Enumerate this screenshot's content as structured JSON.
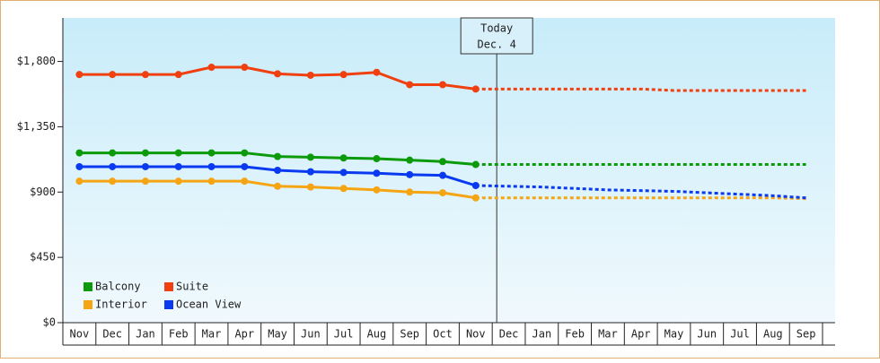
{
  "chart_data": {
    "type": "line",
    "categories": [
      "Nov",
      "Dec",
      "Jan",
      "Feb",
      "Mar",
      "Apr",
      "May",
      "Jun",
      "Jul",
      "Aug",
      "Sep",
      "Oct",
      "Nov",
      "Dec",
      "Jan",
      "Feb",
      "Mar",
      "Apr",
      "May",
      "Jun",
      "Jul",
      "Aug",
      "Sep"
    ],
    "ylim": [
      0,
      2100
    ],
    "yticks": [
      {
        "value": 0,
        "label": "$0"
      },
      {
        "value": 450,
        "label": "$450"
      },
      {
        "value": 900,
        "label": "$900"
      },
      {
        "value": 1350,
        "label": "$1,350"
      },
      {
        "value": 1800,
        "label": "$1,800"
      }
    ],
    "annotation": {
      "title": "Today",
      "date": "Dec. 4"
    },
    "legend": "lower left",
    "series": [
      {
        "name": "Balcony",
        "color": "#0a9a0a",
        "values": [
          1170,
          1170,
          1170,
          1170,
          1170,
          1170,
          1145,
          1140,
          1135,
          1130,
          1120,
          1110,
          1090,
          null,
          null,
          null,
          null,
          null,
          null,
          null,
          null,
          null,
          null
        ],
        "forecast_values": [
          null,
          null,
          null,
          null,
          null,
          null,
          null,
          null,
          null,
          null,
          null,
          null,
          1090,
          1090,
          1090,
          1090,
          1090,
          1090,
          1090,
          1090,
          1090,
          1090,
          1090
        ]
      },
      {
        "name": "Suite",
        "color": "#f04010",
        "values": [
          1710,
          1710,
          1710,
          1710,
          1760,
          1760,
          1715,
          1705,
          1710,
          1725,
          1640,
          1640,
          1610,
          null,
          null,
          null,
          null,
          null,
          null,
          null,
          null,
          null,
          null
        ],
        "forecast_values": [
          null,
          null,
          null,
          null,
          null,
          null,
          null,
          null,
          null,
          null,
          null,
          null,
          1610,
          1610,
          1610,
          1610,
          1610,
          1610,
          1600,
          1600,
          1600,
          1600,
          1600
        ]
      },
      {
        "name": "Interior",
        "color": "#f5a514",
        "values": [
          975,
          975,
          975,
          975,
          975,
          975,
          940,
          935,
          925,
          915,
          900,
          895,
          860,
          null,
          null,
          null,
          null,
          null,
          null,
          null,
          null,
          null,
          null
        ],
        "forecast_values": [
          null,
          null,
          null,
          null,
          null,
          null,
          null,
          null,
          null,
          null,
          null,
          null,
          860,
          860,
          860,
          860,
          860,
          860,
          860,
          860,
          860,
          860,
          855
        ]
      },
      {
        "name": "Ocean View",
        "color": "#0a3af0",
        "values": [
          1075,
          1075,
          1075,
          1075,
          1075,
          1075,
          1050,
          1040,
          1035,
          1030,
          1020,
          1015,
          945,
          null,
          null,
          null,
          null,
          null,
          null,
          null,
          null,
          null,
          null
        ],
        "forecast_values": [
          null,
          null,
          null,
          null,
          null,
          null,
          null,
          null,
          null,
          null,
          null,
          null,
          945,
          940,
          935,
          925,
          915,
          910,
          905,
          895,
          885,
          875,
          860
        ]
      }
    ]
  }
}
